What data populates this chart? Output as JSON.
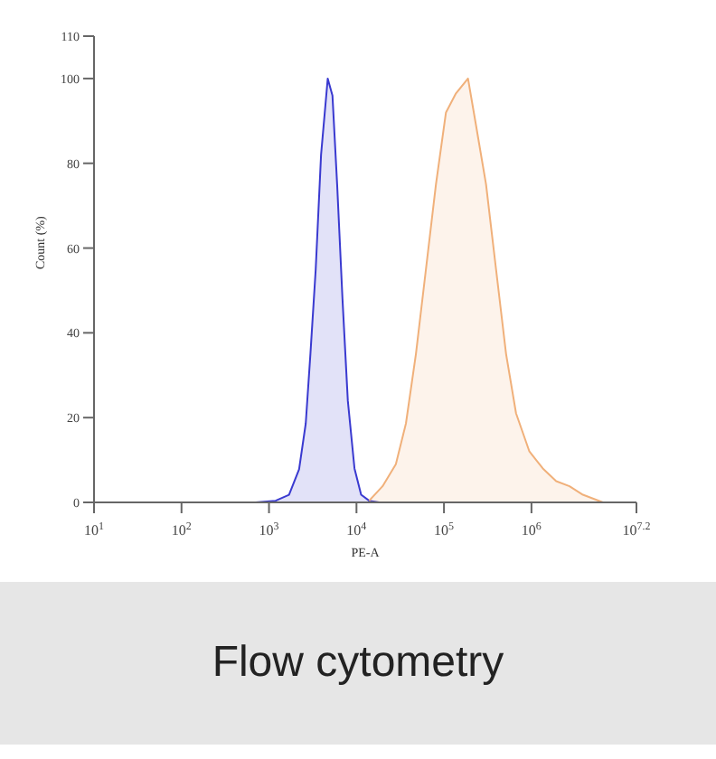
{
  "chart_data": {
    "type": "area",
    "xlabel": "PE-A",
    "ylabel": "Count (%)",
    "log": "x",
    "xlim": [
      10,
      15848932
    ],
    "xticks": [
      {
        "value": 10,
        "label": "10$^{1}$"
      },
      {
        "value": 100,
        "label": "10$^{2}$"
      },
      {
        "value": 1000,
        "label": "10$^{3}$"
      },
      {
        "value": 10000,
        "label": "10$^{4}$"
      },
      {
        "value": 100000,
        "label": "10$^{5}$"
      },
      {
        "value": 1000000,
        "label": "10$^{6}$"
      },
      {
        "value": 15848932,
        "label": "10$^{7.2}$"
      }
    ],
    "ylim": [
      0,
      110
    ],
    "yticks": [
      0,
      20,
      40,
      60,
      80,
      100,
      110
    ],
    "grid": false,
    "legend": false,
    "series": [
      {
        "color": "#3a3ad0",
        "x": [
          703,
          1191,
          1694,
          2208,
          2630,
          2974,
          3420,
          3936,
          4694,
          5313,
          6012,
          6918,
          7962,
          9490,
          11300,
          13960,
          18190
        ],
        "values": [
          0,
          0.4,
          1.8,
          7.8,
          18.6,
          35,
          55,
          82,
          100,
          96,
          75,
          48,
          24,
          8,
          1.8,
          0.4,
          0
        ]
      },
      {
        "color": "#f0b07a",
        "x": [
          13960,
          19850,
          28180,
          36730,
          47790,
          62210,
          80950,
          105400,
          137100,
          188200,
          232300,
          302700,
          393700,
          512900,
          667000,
          948000,
          1349000,
          1916000,
          2723000,
          3873000,
          6561000
        ],
        "values": [
          0.4,
          3.8,
          9,
          18.6,
          35,
          55,
          75,
          92,
          96.5,
          100,
          89,
          75,
          55,
          35,
          21,
          12,
          8,
          5,
          3.8,
          1.8,
          0
        ]
      }
    ],
    "annotations": [
      "Flow cytometry"
    ]
  }
}
